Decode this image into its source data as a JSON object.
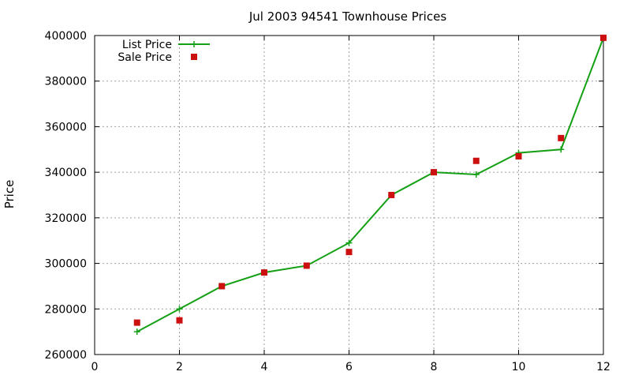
{
  "chart_data": {
    "type": "line",
    "title": "Jul 2003 94541 Townhouse Prices",
    "xlabel": "",
    "ylabel": "Price",
    "xlim": [
      0,
      12
    ],
    "ylim": [
      260000,
      400000
    ],
    "xticks": [
      0,
      2,
      4,
      6,
      8,
      10,
      12
    ],
    "yticks": [
      260000,
      280000,
      300000,
      320000,
      340000,
      360000,
      380000,
      400000
    ],
    "grid": true,
    "legend_position": "top-left",
    "series": [
      {
        "name": "List Price",
        "style": "line+plus",
        "color": "#14a014",
        "x": [
          1,
          2,
          3,
          4,
          5,
          6,
          7,
          8,
          9,
          10,
          11,
          12
        ],
        "y": [
          270000,
          280000,
          290000,
          296000,
          299000,
          309000,
          330000,
          340000,
          339000,
          348500,
          350000,
          399000
        ]
      },
      {
        "name": "Sale Price",
        "style": "square",
        "color": "#cc1010",
        "x": [
          1,
          2,
          3,
          4,
          5,
          6,
          7,
          8,
          9,
          10,
          11,
          12
        ],
        "y": [
          274000,
          275000,
          290000,
          296000,
          299000,
          305000,
          330000,
          340000,
          345000,
          347000,
          355000,
          399000
        ]
      }
    ]
  }
}
